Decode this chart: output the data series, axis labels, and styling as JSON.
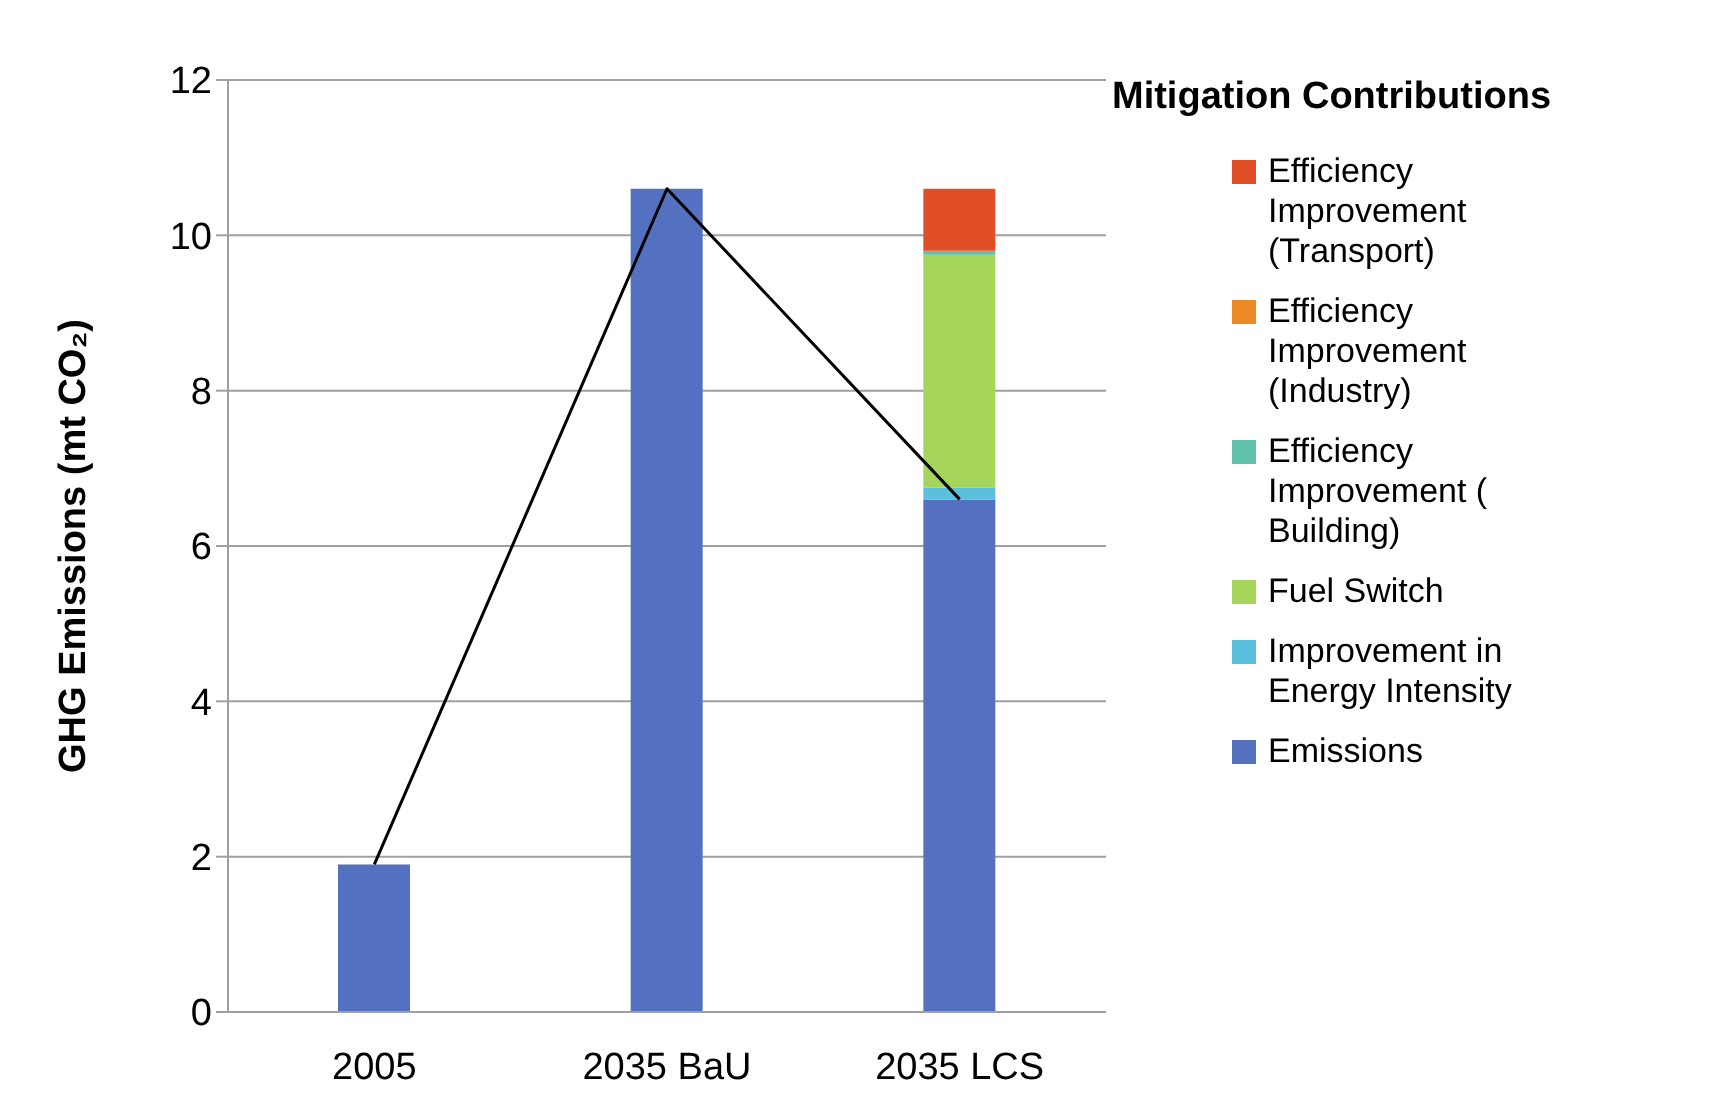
{
  "chart_data": {
    "type": "bar",
    "stacked": true,
    "categories": [
      "2005",
      "2035 BaU",
      "2035 LCS"
    ],
    "ylabel": "GHG Emissions (mt CO₂)",
    "legend_title": "Mitigation Contributions",
    "ylim": [
      0,
      12
    ],
    "yticks": [
      0,
      2,
      4,
      6,
      8,
      10,
      12
    ],
    "grid": "y",
    "legend": "right",
    "series": [
      {
        "name": "Emissions",
        "color": "#5470c0",
        "values": [
          1.9,
          10.6,
          6.6
        ]
      },
      {
        "name": "Improvement in Energy Intensity",
        "color": "#5bc0de",
        "values": [
          0,
          0,
          0.15
        ]
      },
      {
        "name": "Fuel Switch",
        "color": "#a5d55a",
        "values": [
          0,
          0,
          3.0
        ]
      },
      {
        "name": "Efficiency Improvement ( Building)",
        "color": "#5fc1a8",
        "values": [
          0,
          0,
          0.05
        ]
      },
      {
        "name": "Efficiency Improvement (Industry)",
        "color": "#ec8a25",
        "values": [
          0,
          0,
          0
        ]
      },
      {
        "name": "Efficiency Improvement (Transport)",
        "color": "#e04f26",
        "values": [
          0,
          0,
          0.8
        ]
      },
      {
        "type": "line",
        "color": "#000000",
        "values": [
          1.9,
          10.6,
          6.6
        ]
      }
    ]
  }
}
